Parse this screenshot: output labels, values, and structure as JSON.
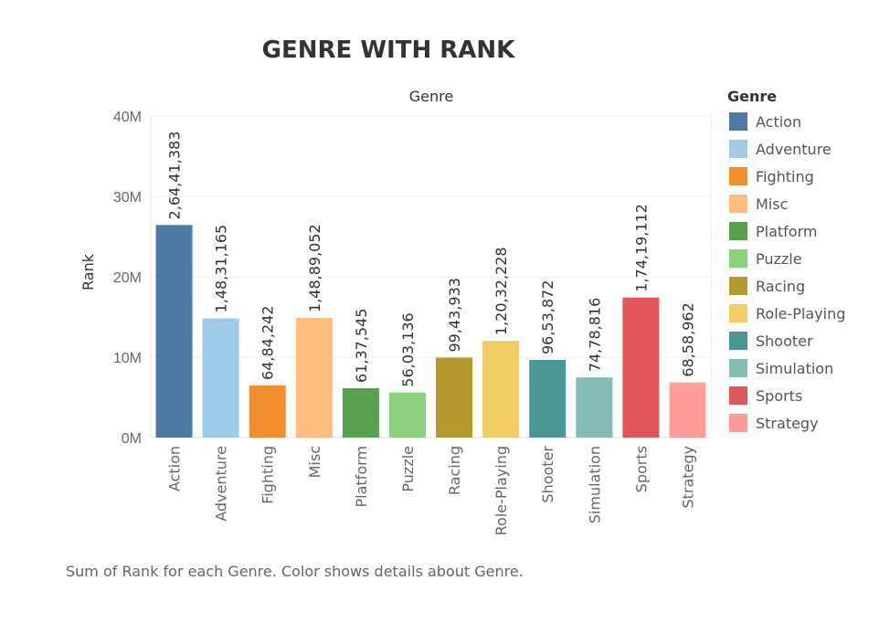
{
  "chart_data": {
    "type": "bar",
    "title": "GENRE WITH RANK",
    "column_header": "Genre",
    "ylabel": "Rank",
    "ylim": [
      0,
      40000000
    ],
    "yticks": [
      0,
      10000000,
      20000000,
      30000000,
      40000000
    ],
    "ytick_labels": [
      "0M",
      "10M",
      "20M",
      "30M",
      "40M"
    ],
    "categories": [
      "Action",
      "Adventure",
      "Fighting",
      "Misc",
      "Platform",
      "Puzzle",
      "Racing",
      "Role-Playing",
      "Shooter",
      "Simulation",
      "Sports",
      "Strategy"
    ],
    "values": [
      26441383,
      14831165,
      6484242,
      14889052,
      6137545,
      5603136,
      9943933,
      12032228,
      9653872,
      7478816,
      17419112,
      6858962
    ],
    "value_labels": [
      "2,64,41,383",
      "1,48,31,165",
      "64,84,242",
      "1,48,89,052",
      "61,37,545",
      "56,03,136",
      "99,43,933",
      "1,20,32,228",
      "96,53,872",
      "74,78,816",
      "1,74,19,112",
      "68,58,962"
    ],
    "colors": [
      "#4e79a7",
      "#a0cbe8",
      "#f28e2b",
      "#ffbe7d",
      "#59a14f",
      "#8cd17d",
      "#b6992d",
      "#f1ce63",
      "#499894",
      "#86bcb6",
      "#e15759",
      "#ff9d9a"
    ],
    "grid": true,
    "legend": {
      "title": "Genre",
      "position": "right",
      "items": [
        "Action",
        "Adventure",
        "Fighting",
        "Misc",
        "Platform",
        "Puzzle",
        "Racing",
        "Role-Playing",
        "Shooter",
        "Simulation",
        "Sports",
        "Strategy"
      ]
    },
    "caption": "Sum of Rank for each Genre.  Color shows details about Genre."
  }
}
